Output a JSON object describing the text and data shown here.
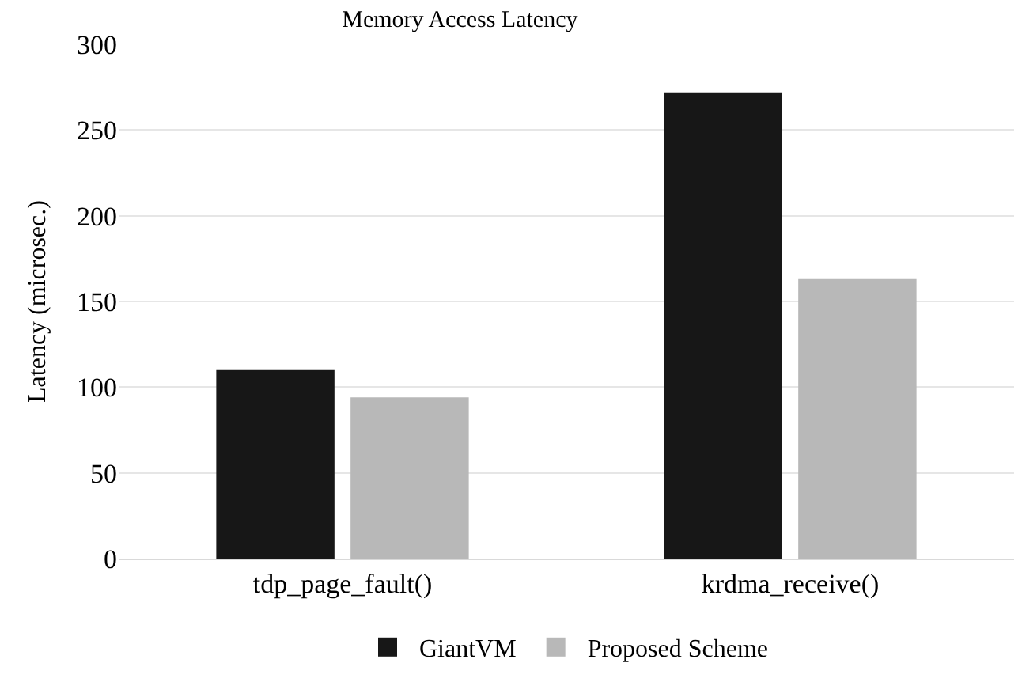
{
  "chart_data": {
    "type": "bar",
    "title": "Memory Access Latency",
    "ylabel": "Latency (microsec.)",
    "categories": [
      "tdp_page_fault()",
      "krdma_receive()"
    ],
    "series": [
      {
        "name": "GiantVM",
        "color": "#171717",
        "values": [
          110,
          272
        ]
      },
      {
        "name": "Proposed Scheme",
        "color": "#b8b8b8",
        "values": [
          94,
          163
        ]
      }
    ],
    "ylim": [
      0,
      300
    ],
    "yticks": [
      0,
      50,
      100,
      150,
      200,
      250,
      300
    ],
    "grid": "y",
    "legend": "bottom"
  }
}
